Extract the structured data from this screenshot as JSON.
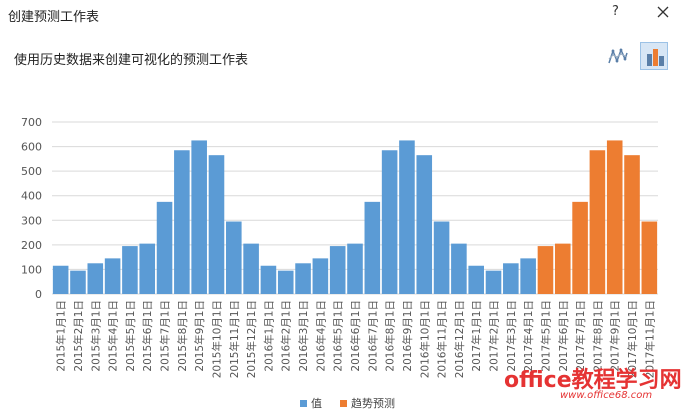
{
  "window": {
    "title": "创建预测工作表",
    "help_label": "?",
    "subtitle": "使用历史数据来创建可视化的预测工作表"
  },
  "icons": {
    "line_view": "line-chart-icon",
    "bar_view": "bar-chart-icon",
    "close": "close-icon"
  },
  "colors": {
    "value_series": "#5b9bd5",
    "forecast_series": "#ed7d31",
    "grid": "#d9d9d9"
  },
  "watermark": {
    "text": "office教程学习网",
    "url": "www.office68.com"
  },
  "chart_data": {
    "type": "bar",
    "ylim": [
      0,
      700
    ],
    "yticks": [
      0,
      100,
      200,
      300,
      400,
      500,
      600,
      700
    ],
    "grid": true,
    "legend_position": "bottom",
    "categories": [
      "2015年1月1日",
      "2015年2月1日",
      "2015年3月1日",
      "2015年4月1日",
      "2015年5月1日",
      "2015年6月1日",
      "2015年7月1日",
      "2015年8月1日",
      "2015年9月1日",
      "2015年10月1日",
      "2015年11月1日",
      "2015年12月1日",
      "2016年1月1日",
      "2016年2月1日",
      "2016年3月1日",
      "2016年4月1日",
      "2016年5月1日",
      "2016年6月1日",
      "2016年7月1日",
      "2016年8月1日",
      "2016年9月1日",
      "2016年10月1日",
      "2016年11月1日",
      "2016年12月1日",
      "2017年1月1日",
      "2017年2月1日",
      "2017年3月1日",
      "2017年4月1日",
      "2017年5月1日",
      "2017年6月1日",
      "2017年7月1日",
      "2017年8月1日",
      "2017年9月1日",
      "2017年10月1日",
      "2017年11月1日"
    ],
    "series": [
      {
        "name": "值",
        "color": "#5b9bd5",
        "values": [
          115,
          95,
          125,
          145,
          195,
          205,
          375,
          585,
          625,
          565,
          295,
          205,
          115,
          95,
          125,
          145,
          195,
          205,
          375,
          585,
          625,
          565,
          295,
          205,
          115,
          95,
          125,
          145,
          null,
          null,
          null,
          null,
          null,
          null,
          null
        ]
      },
      {
        "name": "趋势预测",
        "color": "#ed7d31",
        "values": [
          null,
          null,
          null,
          null,
          null,
          null,
          null,
          null,
          null,
          null,
          null,
          null,
          null,
          null,
          null,
          null,
          null,
          null,
          null,
          null,
          null,
          null,
          null,
          null,
          null,
          null,
          null,
          null,
          195,
          205,
          375,
          585,
          625,
          565,
          295
        ]
      }
    ]
  }
}
